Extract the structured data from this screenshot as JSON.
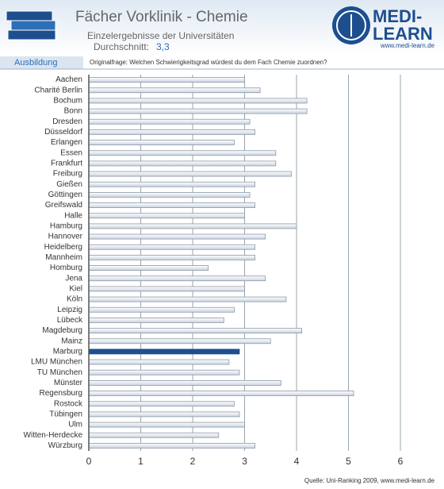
{
  "header": {
    "title": "Fächer Vorklinik - Chemie",
    "subtitle": "Einzelergebnisse der Universitäten",
    "average_label": "Durchschnitt:",
    "average_value": "3,3",
    "section": "Ausbildung",
    "question": "Originalfrage: Welchen Schwierigkeitsgrad würdest du dem Fach Chemie zuordnen?"
  },
  "logo": {
    "line1": "MEDI-",
    "line2": "LEARN",
    "url": "www.medi-learn.de"
  },
  "footer": {
    "source": "Quelle: Uni-Ranking 2009, www.medi-learn.de"
  },
  "chart_data": {
    "type": "barh",
    "categories": [
      "Aachen",
      "Charité Berlin",
      "Bochum",
      "Bonn",
      "Dresden",
      "Düsseldorf",
      "Erlangen",
      "Essen",
      "Frankfurt",
      "Freiburg",
      "Gießen",
      "Göttingen",
      "Greifswald",
      "Halle",
      "Hamburg",
      "Hannover",
      "Heidelberg",
      "Mannheim",
      "Homburg",
      "Jena",
      "Kiel",
      "Köln",
      "Leipzig",
      "Lübeck",
      "Magdeburg",
      "Mainz",
      "Marburg",
      "LMU München",
      "TU München",
      "Münster",
      "Regensburg",
      "Rostock",
      "Tübingen",
      "Ulm",
      "Witten-Herdecke",
      "Würzburg"
    ],
    "values": [
      3.0,
      3.3,
      4.2,
      4.2,
      3.1,
      3.2,
      2.8,
      3.6,
      3.6,
      3.9,
      3.2,
      3.1,
      3.2,
      3.0,
      4.0,
      3.4,
      3.2,
      3.2,
      2.3,
      3.4,
      3.0,
      3.8,
      2.8,
      2.6,
      4.1,
      3.5,
      2.9,
      2.7,
      2.9,
      3.7,
      5.1,
      2.8,
      2.9,
      3.0,
      2.5,
      3.2
    ],
    "color": "#e6ebf2",
    "highlight": {
      "category": "Marburg",
      "color": "#1d4f8f"
    },
    "xlim": [
      0,
      6
    ],
    "xticks": [
      0,
      1,
      2,
      3,
      4,
      5,
      6
    ],
    "grid": true
  }
}
